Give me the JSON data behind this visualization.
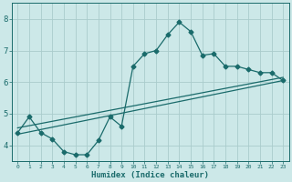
{
  "xlabel": "Humidex (Indice chaleur)",
  "background_color": "#cce8e8",
  "grid_color": "#aacccc",
  "line_color": "#1a6b6b",
  "xlim": [
    -0.5,
    23.5
  ],
  "ylim": [
    3.5,
    8.5
  ],
  "xticks": [
    0,
    1,
    2,
    3,
    4,
    5,
    6,
    7,
    8,
    9,
    10,
    11,
    12,
    13,
    14,
    15,
    16,
    17,
    18,
    19,
    20,
    21,
    22,
    23
  ],
  "yticks": [
    4,
    5,
    6,
    7,
    8
  ],
  "curve_x": [
    0,
    1,
    2,
    3,
    4,
    5,
    6,
    7,
    8,
    9,
    10,
    11,
    12,
    13,
    14,
    15,
    16,
    17,
    18,
    19,
    20,
    21,
    22,
    23
  ],
  "curve_y": [
    4.4,
    4.9,
    4.4,
    4.2,
    3.8,
    3.7,
    3.7,
    4.15,
    4.9,
    4.6,
    6.5,
    6.9,
    7.0,
    7.5,
    7.9,
    7.6,
    6.85,
    6.9,
    6.5,
    6.5,
    6.4,
    6.3,
    6.3,
    6.05
  ],
  "line1_x": [
    0,
    23
  ],
  "line1_y": [
    4.35,
    6.05
  ],
  "line2_x": [
    0,
    23
  ],
  "line2_y": [
    4.55,
    6.15
  ],
  "marker_size": 2.5,
  "lw": 0.9
}
